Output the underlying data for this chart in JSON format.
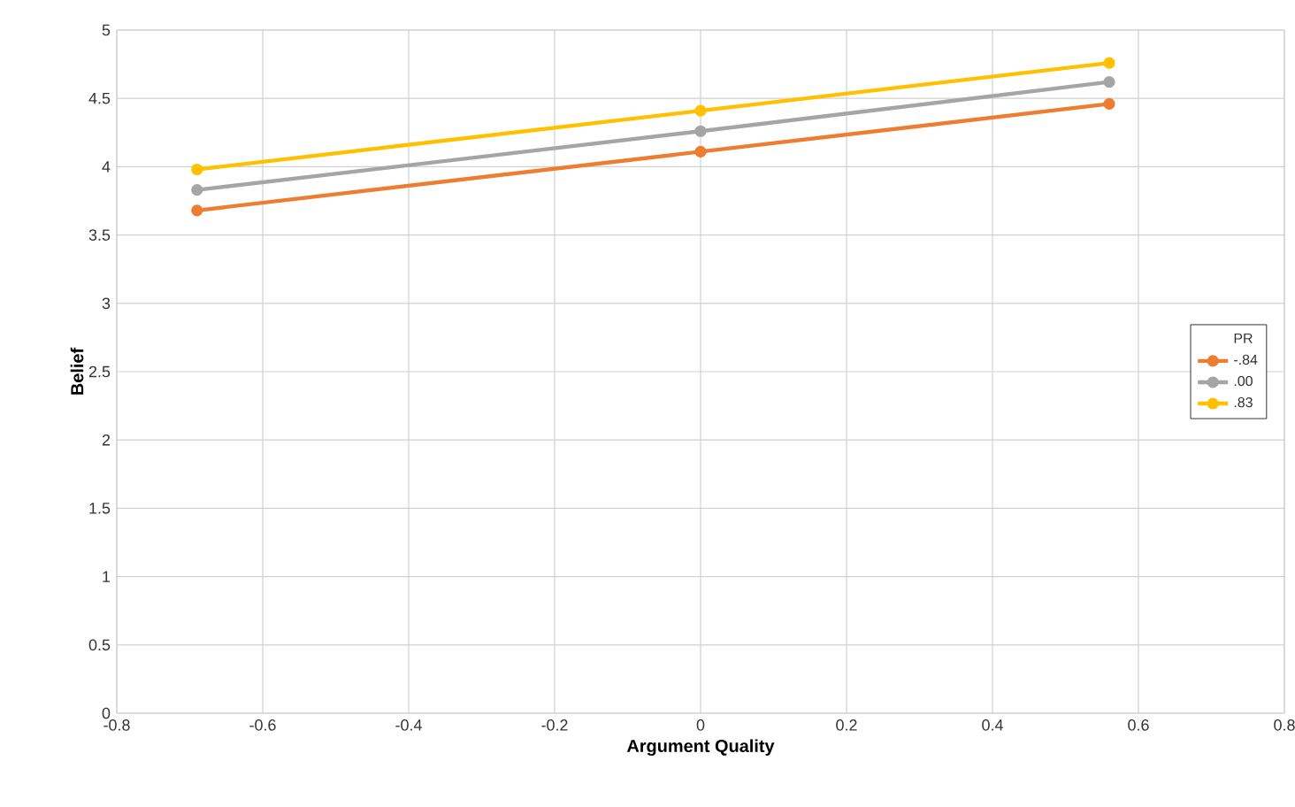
{
  "chart_data": {
    "type": "line",
    "xlabel": "Argument Quality",
    "ylabel": "Belief",
    "legend_title": "PR",
    "xlim": [
      -0.8,
      0.8
    ],
    "xticks": [
      -0.8,
      -0.6,
      -0.4,
      -0.2,
      0,
      0.2,
      0.4,
      0.6,
      0.8
    ],
    "ylim": [
      0,
      5
    ],
    "yticks": [
      0,
      0.5,
      1,
      1.5,
      2,
      2.5,
      3,
      3.5,
      4,
      4.5,
      5
    ],
    "grid": true,
    "legend": "right",
    "marker": "circle",
    "line_style": "solid",
    "series": [
      {
        "name": "-.84",
        "color": "#ed7d31",
        "x": [
          -0.69,
          0,
          0.56
        ],
        "values": [
          3.68,
          4.11,
          4.46
        ]
      },
      {
        "name": ".00",
        "color": "#a5a5a5",
        "x": [
          -0.69,
          0,
          0.56
        ],
        "values": [
          3.83,
          4.26,
          4.62
        ]
      },
      {
        "name": ".83",
        "color": "#ffc000",
        "x": [
          -0.69,
          0,
          0.56
        ],
        "values": [
          3.98,
          4.41,
          4.76
        ]
      }
    ]
  }
}
